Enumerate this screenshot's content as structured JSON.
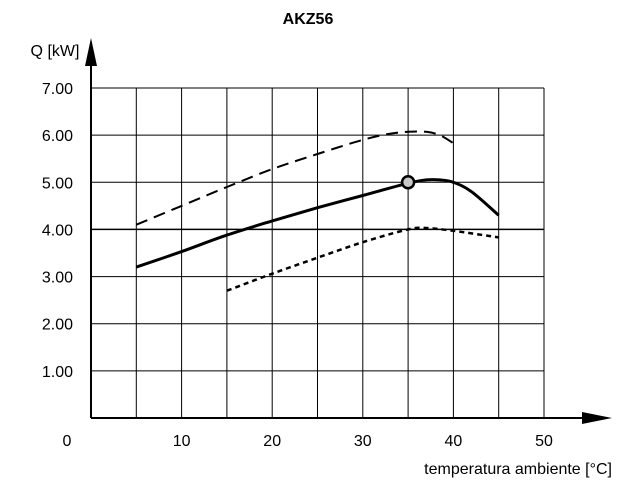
{
  "chart_data": {
    "type": "line",
    "title": "AKZ56",
    "xlabel": "temperatura ambiente [°C]",
    "ylabel": "Q [kW]",
    "xlim": [
      0,
      50
    ],
    "ylim": [
      0,
      7
    ],
    "x_ticks": [
      0,
      10,
      20,
      30,
      40,
      50
    ],
    "x_tick_labels": [
      "0",
      "10",
      "20",
      "30",
      "40",
      "50"
    ],
    "x_grid": [
      5,
      10,
      15,
      20,
      25,
      30,
      35,
      40,
      45
    ],
    "y_ticks": [
      1,
      2,
      3,
      4,
      5,
      6,
      7
    ],
    "y_tick_labels": [
      "1.00",
      "2.00",
      "3.00",
      "4.00",
      "5.00",
      "6.00",
      "7.00"
    ],
    "grid": true,
    "legend": "none",
    "series": [
      {
        "style": "dashed",
        "x": [
          5,
          10,
          15,
          20,
          25,
          30,
          33,
          35,
          37,
          38.5,
          40
        ],
        "y": [
          4.1,
          4.5,
          4.9,
          5.28,
          5.6,
          5.9,
          6.03,
          6.07,
          6.07,
          6.0,
          5.83
        ]
      },
      {
        "style": "solid",
        "x": [
          5,
          10,
          15,
          20,
          25,
          30,
          35,
          37,
          38.5,
          40,
          42,
          45
        ],
        "y": [
          3.2,
          3.53,
          3.88,
          4.18,
          4.46,
          4.72,
          4.98,
          5.05,
          5.05,
          5.0,
          4.8,
          4.3
        ]
      },
      {
        "style": "dotted",
        "x": [
          15,
          20,
          25,
          30,
          35,
          37,
          40,
          45
        ],
        "y": [
          2.7,
          3.06,
          3.4,
          3.73,
          4.0,
          4.03,
          3.97,
          3.83
        ]
      }
    ],
    "marker": {
      "x": 35,
      "y": 5.0
    },
    "colors": {
      "line": "#000000",
      "marker_fill": "#c8c8c8",
      "background": "#ffffff"
    }
  }
}
